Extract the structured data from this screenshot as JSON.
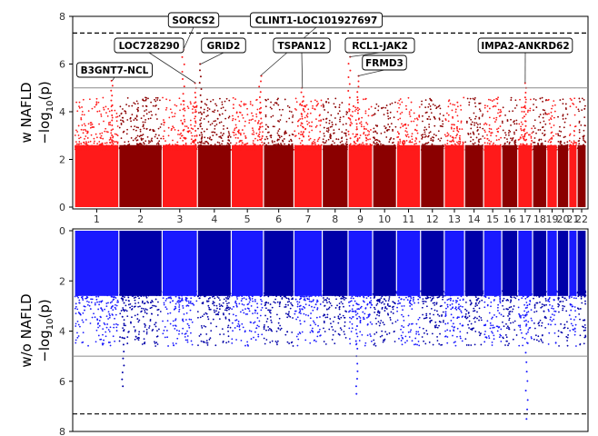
{
  "chart_data": [
    {
      "type": "scatter",
      "subtype": "manhattan",
      "title": "",
      "ylabel_line1": "w NAFLD",
      "ylabel_line2": "−log",
      "ylabel_sub": "10",
      "ylabel_tail": "(p)",
      "ylim": [
        0,
        8
      ],
      "yticks": [
        "0",
        "2",
        "4",
        "6",
        "8"
      ],
      "suggestive_line": 5,
      "genomewide_line": 7.3,
      "colors": [
        "#ff1a1a",
        "#8b0000"
      ],
      "chromosomes": [
        "1",
        "2",
        "3",
        "4",
        "5",
        "6",
        "7",
        "8",
        "9",
        "10",
        "11",
        "12",
        "13",
        "14",
        "15",
        "16",
        "17",
        "18",
        "19",
        "20",
        "21",
        "22"
      ],
      "peaks": [
        {
          "chr": "1",
          "pos": 0.85,
          "value": 5.3,
          "label": "B3GNT7-NCL"
        },
        {
          "chr": "3",
          "pos": 0.95,
          "value": 5.2,
          "label": "LOC728290"
        },
        {
          "chr": "3",
          "pos": 0.6,
          "value": 6.6,
          "label": "SORCS2"
        },
        {
          "chr": "4",
          "pos": 0.1,
          "value": 6.0,
          "label": "GRID2"
        },
        {
          "chr": "5",
          "pos": 0.9,
          "value": 5.5,
          "label": "CLINT1-LOC101927697"
        },
        {
          "chr": "7",
          "pos": 0.3,
          "value": 5.0,
          "label": "TSPAN12"
        },
        {
          "chr": "9",
          "pos": 0.05,
          "value": 6.3,
          "label": "RCL1-JAK2"
        },
        {
          "chr": "9",
          "pos": 0.4,
          "value": 5.5,
          "label": "FRMD3"
        },
        {
          "chr": "17",
          "pos": 0.5,
          "value": 5.2,
          "label": "IMPA2-ANKRD62"
        }
      ]
    },
    {
      "type": "scatter",
      "subtype": "manhattan-inverted",
      "title": "",
      "ylabel_line1": "w/o NAFLD",
      "ylabel_line2": "−log",
      "ylabel_sub": "10",
      "ylabel_tail": "(p)",
      "ylim": [
        0,
        8
      ],
      "yticks": [
        "0",
        "2",
        "4",
        "6",
        "8"
      ],
      "suggestive_line": 5,
      "genomewide_line": 7.3,
      "colors": [
        "#1a1aff",
        "#0000a8"
      ],
      "chromosomes": [
        "1",
        "2",
        "3",
        "4",
        "5",
        "6",
        "7",
        "8",
        "9",
        "10",
        "11",
        "12",
        "13",
        "14",
        "15",
        "16",
        "17",
        "18",
        "19",
        "20",
        "21",
        "22"
      ],
      "peaks": [
        {
          "chr": "2",
          "pos": 0.1,
          "value": 6.2
        },
        {
          "chr": "9",
          "pos": 0.35,
          "value": 6.5
        },
        {
          "chr": "17",
          "pos": 0.6,
          "value": 7.5
        }
      ]
    }
  ]
}
